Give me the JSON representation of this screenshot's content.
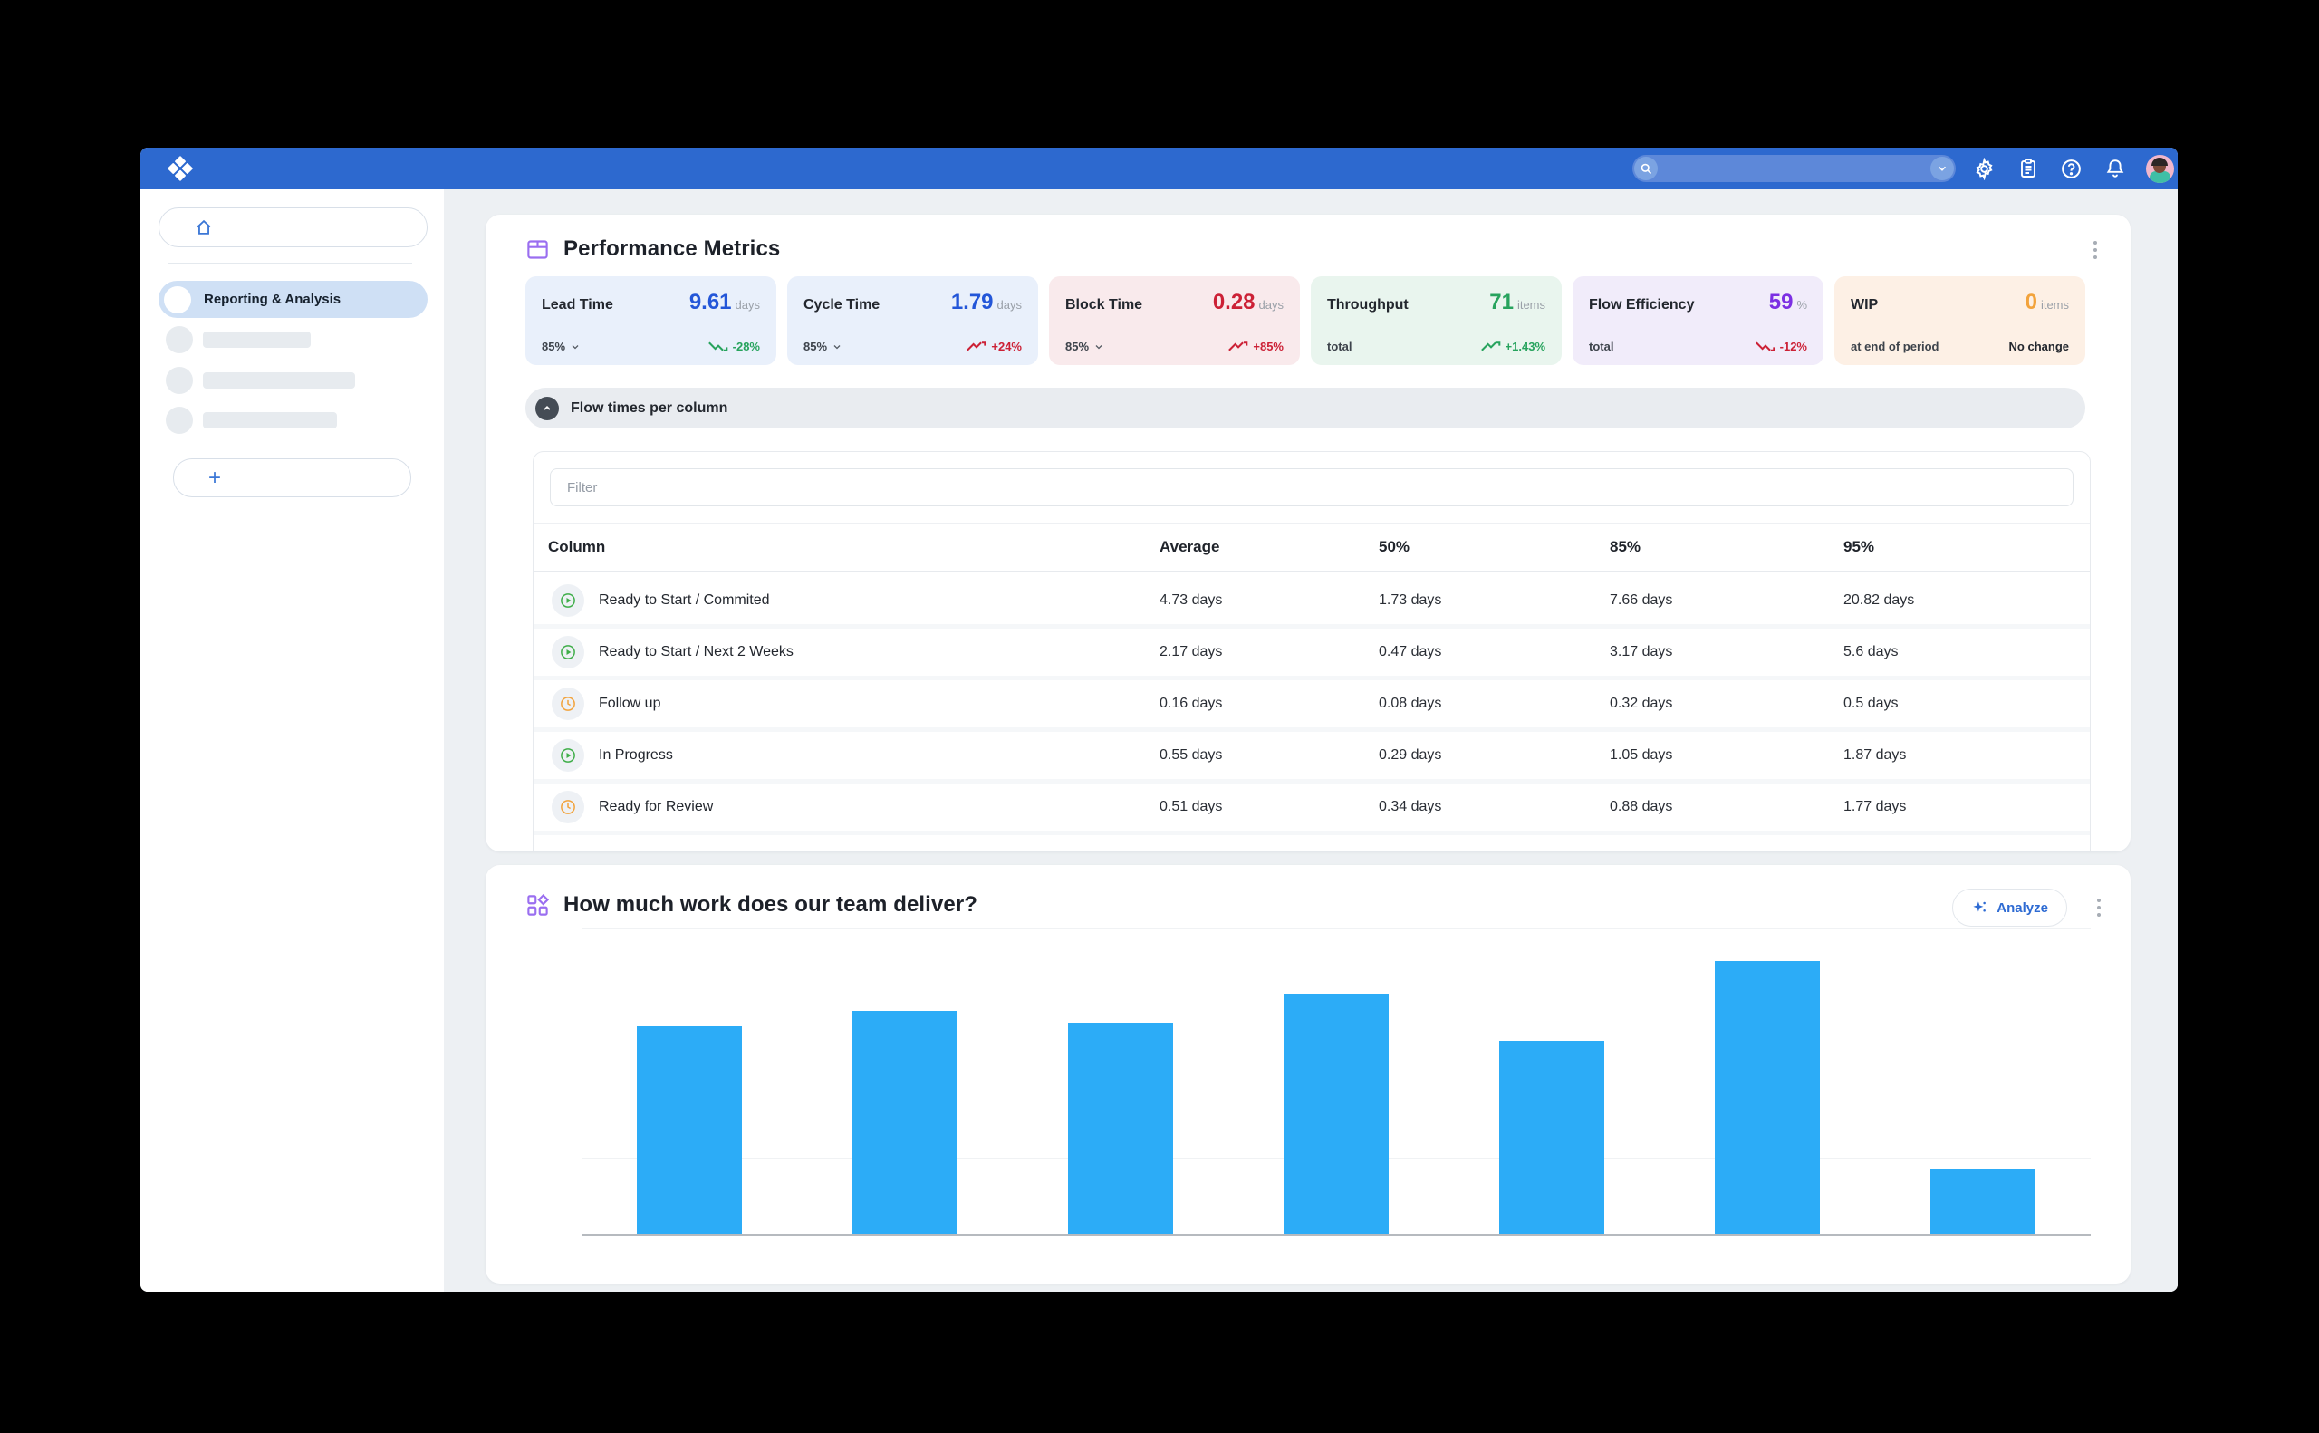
{
  "colors": {
    "topbar_blue": "#2d69cf",
    "active_item_bg": "#cfe0f5",
    "bar_blue": "#2CACF7",
    "value_blue": "#2356d8",
    "value_red": "#cc2136",
    "value_green": "#27a35d",
    "value_purple": "#7c2fe3",
    "value_orange": "#f2a33c"
  },
  "topbar": {
    "search_placeholder": "",
    "icons": [
      "search",
      "chevron-down",
      "settings-gear",
      "clipboard",
      "help",
      "notifications-bell",
      "avatar"
    ]
  },
  "sidebar": {
    "home_icon": "home",
    "active_item": "Reporting & Analysis",
    "skeleton_items": 3,
    "add_button": "+"
  },
  "metrics_card": {
    "title": "Performance Metrics",
    "chips": [
      {
        "label": "Lead Time",
        "value": "9.61",
        "unit": "days",
        "sub": "85%",
        "has_dropdown": true,
        "trend": "-28%",
        "trend_dir": "down",
        "trend_tone": "green"
      },
      {
        "label": "Cycle Time",
        "value": "1.79",
        "unit": "days",
        "sub": "85%",
        "has_dropdown": true,
        "trend": "+24%",
        "trend_dir": "up",
        "trend_tone": "red"
      },
      {
        "label": "Block Time",
        "value": "0.28",
        "unit": "days",
        "sub": "85%",
        "has_dropdown": true,
        "trend": "+85%",
        "trend_dir": "up",
        "trend_tone": "red"
      },
      {
        "label": "Throughput",
        "value": "71",
        "unit": "items",
        "sub": "total",
        "has_dropdown": false,
        "trend": "+1.43%",
        "trend_dir": "up",
        "trend_tone": "green"
      },
      {
        "label": "Flow Efficiency",
        "value": "59",
        "unit": "%",
        "sub": "total",
        "has_dropdown": false,
        "trend": "-12%",
        "trend_dir": "down",
        "trend_tone": "red"
      },
      {
        "label": "WIP",
        "value": "0",
        "unit": "items",
        "sub": "at end of period",
        "has_dropdown": false,
        "trend": "No change",
        "trend_dir": "none",
        "trend_tone": "plain"
      }
    ],
    "section_toggle_label": "Flow times per column",
    "filter_placeholder": "Filter",
    "table": {
      "headers": [
        "Column",
        "Average",
        "50%",
        "85%",
        "95%"
      ],
      "rows": [
        {
          "icon": "play-circle",
          "name": "Ready to Start / Commited",
          "average": "4.73 days",
          "p50": "1.73 days",
          "p85": "7.66 days",
          "p95": "20.82 days"
        },
        {
          "icon": "play-circle",
          "name": "Ready to Start / Next 2 Weeks",
          "average": "2.17 days",
          "p50": "0.47 days",
          "p85": "3.17 days",
          "p95": "5.6 days"
        },
        {
          "icon": "clock-circle",
          "name": "Follow up",
          "average": "0.16 days",
          "p50": "0.08 days",
          "p85": "0.32 days",
          "p95": "0.5 days"
        },
        {
          "icon": "play-circle",
          "name": "In Progress",
          "average": "0.55 days",
          "p50": "0.29 days",
          "p85": "1.05 days",
          "p95": "1.87 days"
        },
        {
          "icon": "clock-circle",
          "name": "Ready for Review",
          "average": "0.51 days",
          "p50": "0.34 days",
          "p85": "0.88 days",
          "p95": "1.77 days"
        }
      ]
    }
  },
  "chart_card": {
    "title": "How much work does our team deliver?",
    "analyze_label": "Analyze",
    "chart_data": {
      "type": "bar",
      "title": "How much work does our team deliver?",
      "categories": [
        "",
        "",
        "",
        "",
        "",
        "",
        ""
      ],
      "values": [
        2.72,
        2.92,
        2.77,
        3.14,
        2.53,
        3.57,
        0.85
      ],
      "ylim": [
        0,
        4
      ],
      "xlabel": "",
      "ylabel": "",
      "grid": true,
      "legend": false,
      "bar_color": "#2CACF7",
      "note": "axes unlabeled in view; values estimated in gridline units (4 equal intervals between baseline and top gridline)"
    }
  }
}
